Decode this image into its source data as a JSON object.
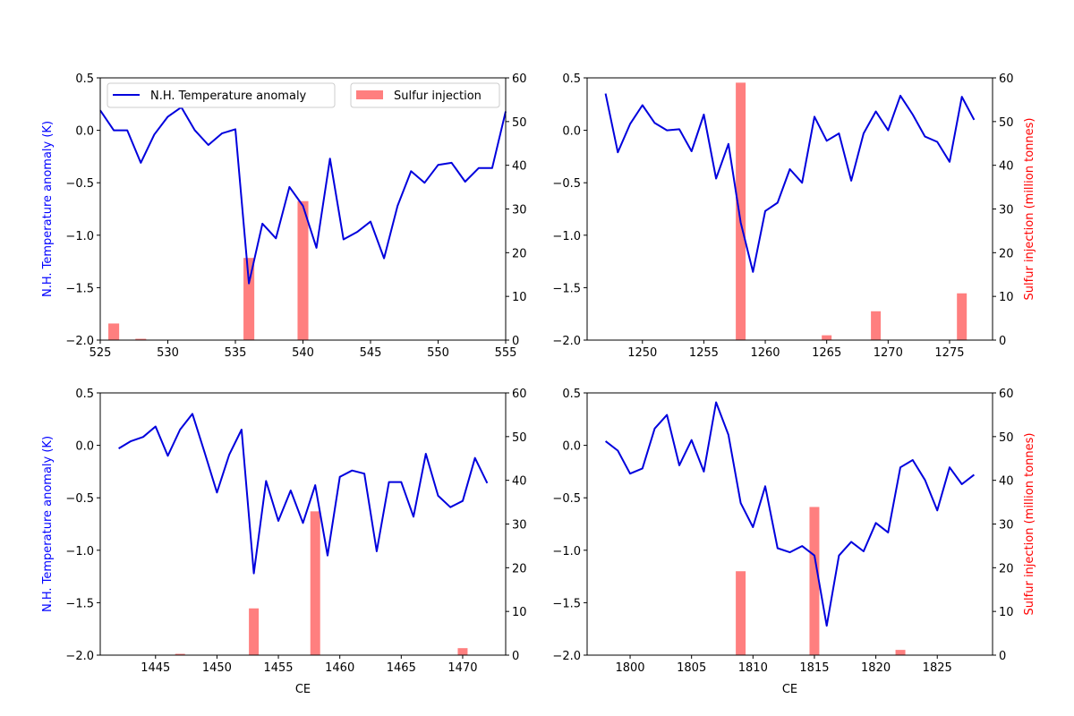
{
  "chart_data": [
    {
      "type": "line+bar",
      "xlabel": "",
      "ylabel_left": "N.H. Temperature anomaly (K)",
      "ylabel_right": "",
      "xlim": [
        525,
        555
      ],
      "ylim_left": [
        -2.0,
        0.5
      ],
      "ylim_right": [
        0,
        60
      ],
      "xticks": [
        525,
        530,
        535,
        540,
        545,
        550,
        555
      ],
      "legend": {
        "placement": "top",
        "entries": [
          "N.H. Temperature anomaly",
          "Sulfur injection"
        ]
      },
      "temperature": {
        "x": [
          525,
          526,
          527,
          528,
          529,
          530,
          531,
          532,
          533,
          534,
          535,
          536,
          537,
          538,
          539,
          540,
          541,
          542,
          543,
          544,
          545,
          546,
          547,
          548,
          549,
          550,
          551,
          552,
          553,
          554,
          555
        ],
        "y": [
          0.19,
          0.0,
          0.0,
          -0.31,
          -0.04,
          0.13,
          0.22,
          0.0,
          -0.14,
          -0.03,
          0.01,
          -1.46,
          -0.89,
          -1.03,
          -0.54,
          -0.72,
          -1.12,
          -0.27,
          -1.04,
          -0.97,
          -0.87,
          -1.22,
          -0.72,
          -0.39,
          -0.5,
          -0.33,
          -0.31,
          -0.49,
          -0.36,
          -0.36,
          0.18
        ]
      },
      "sulfur": {
        "x": [
          526,
          528,
          536,
          540
        ],
        "y": [
          3.8,
          0.3,
          18.8,
          31.8
        ]
      }
    },
    {
      "type": "line+bar",
      "xlabel": "",
      "ylabel_left": "",
      "ylabel_right": "Sulfur injection (million tonnes)",
      "xlim": [
        1245.5,
        1278.5
      ],
      "ylim_left": [
        -2.0,
        0.5
      ],
      "ylim_right": [
        0,
        60
      ],
      "xticks": [
        1250,
        1255,
        1260,
        1265,
        1270,
        1275
      ],
      "temperature": {
        "x": [
          1247,
          1248,
          1249,
          1250,
          1251,
          1252,
          1253,
          1254,
          1255,
          1256,
          1257,
          1258,
          1259,
          1260,
          1261,
          1262,
          1263,
          1264,
          1265,
          1266,
          1267,
          1268,
          1269,
          1270,
          1271,
          1272,
          1273,
          1274,
          1275,
          1276,
          1277
        ],
        "y": [
          0.35,
          -0.21,
          0.06,
          0.24,
          0.07,
          0.0,
          0.01,
          -0.2,
          0.15,
          -0.46,
          -0.13,
          -0.88,
          -1.35,
          -0.77,
          -0.69,
          -0.37,
          -0.5,
          0.13,
          -0.1,
          -0.03,
          -0.48,
          -0.03,
          0.18,
          0.0,
          0.33,
          0.15,
          -0.06,
          -0.11,
          -0.3,
          0.32,
          0.1
        ]
      },
      "sulfur": {
        "x": [
          1258,
          1265,
          1269,
          1276
        ],
        "y": [
          58.9,
          1.1,
          6.6,
          10.7
        ]
      }
    },
    {
      "type": "line+bar",
      "xlabel": "CE",
      "ylabel_left": "N.H. Temperature anomaly (K)",
      "ylabel_right": "",
      "xlim": [
        1440.5,
        1473.5
      ],
      "ylim_left": [
        -2.0,
        0.5
      ],
      "ylim_right": [
        0,
        60
      ],
      "xticks": [
        1445,
        1450,
        1455,
        1460,
        1465,
        1470
      ],
      "temperature": {
        "x": [
          1442,
          1443,
          1444,
          1445,
          1446,
          1447,
          1448,
          1449,
          1450,
          1451,
          1452,
          1453,
          1454,
          1455,
          1456,
          1457,
          1458,
          1459,
          1460,
          1461,
          1462,
          1463,
          1464,
          1465,
          1466,
          1467,
          1468,
          1469,
          1470,
          1471,
          1472
        ],
        "y": [
          -0.03,
          0.04,
          0.08,
          0.18,
          -0.1,
          0.15,
          0.3,
          -0.07,
          -0.45,
          -0.09,
          0.15,
          -1.22,
          -0.34,
          -0.72,
          -0.43,
          -0.74,
          -0.38,
          -1.05,
          -0.3,
          -0.24,
          -0.27,
          -1.01,
          -0.35,
          -0.35,
          -0.68,
          -0.08,
          -0.48,
          -0.59,
          -0.53,
          -0.12,
          -0.36
        ]
      },
      "sulfur": {
        "x": [
          1447,
          1453,
          1458,
          1470
        ],
        "y": [
          0.3,
          10.7,
          32.9,
          1.6
        ]
      }
    },
    {
      "type": "line+bar",
      "xlabel": "CE",
      "ylabel_left": "",
      "ylabel_right": "Sulfur injection (million tonnes)",
      "xlim": [
        1796.5,
        1829.5
      ],
      "ylim_left": [
        -2.0,
        0.5
      ],
      "ylim_right": [
        0,
        60
      ],
      "xticks": [
        1800,
        1805,
        1810,
        1815,
        1820,
        1825
      ],
      "temperature": {
        "x": [
          1798,
          1799,
          1800,
          1801,
          1802,
          1803,
          1804,
          1805,
          1806,
          1807,
          1808,
          1809,
          1810,
          1811,
          1812,
          1813,
          1814,
          1815,
          1816,
          1817,
          1818,
          1819,
          1820,
          1821,
          1822,
          1823,
          1824,
          1825,
          1826,
          1827,
          1828
        ],
        "y": [
          0.04,
          -0.05,
          -0.27,
          -0.22,
          0.16,
          0.29,
          -0.19,
          0.05,
          -0.25,
          0.41,
          0.1,
          -0.55,
          -0.78,
          -0.39,
          -0.98,
          -1.02,
          -0.96,
          -1.05,
          -1.72,
          -1.05,
          -0.92,
          -1.01,
          -0.74,
          -0.83,
          -0.21,
          -0.14,
          -0.33,
          -0.62,
          -0.21,
          -0.37,
          -0.28
        ]
      },
      "sulfur": {
        "x": [
          1809,
          1815,
          1822
        ],
        "y": [
          19.2,
          33.9,
          1.2
        ]
      }
    }
  ],
  "y_left_ticks": [
    -2.0,
    -1.5,
    -1.0,
    -0.5,
    0.0,
    0.5
  ],
  "y_right_ticks": [
    0,
    10,
    20,
    30,
    40,
    50,
    60
  ],
  "colors": {
    "temperature": "#0000dd",
    "sulfur": "#ff7f7f",
    "left_label": "#0000ff",
    "right_label": "#ff0000"
  }
}
